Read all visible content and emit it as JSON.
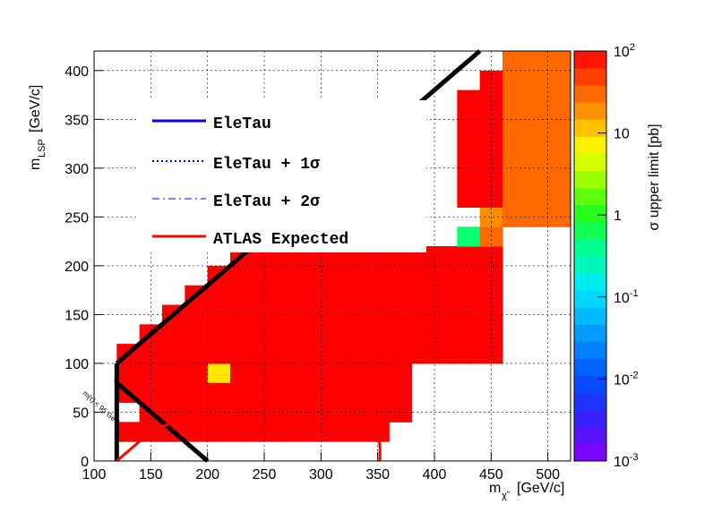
{
  "chart_data": {
    "type": "heatmap",
    "xlabel_main": "m",
    "xlabel_sub": "χ̃",
    "xlabel_unit": "[GeV/c]",
    "ylabel_main": "m",
    "ylabel_sub": "LSP",
    "ylabel_unit": "[GeV/c]",
    "zlabel": "σ upper limit [pb]",
    "xlim": [
      100,
      520
    ],
    "ylim": [
      0,
      420
    ],
    "zlim": [
      0.001,
      100
    ],
    "zscale": "log",
    "grid": true,
    "legend_placement": "top-left",
    "x_ticks": [
      100,
      150,
      200,
      250,
      300,
      350,
      400,
      450,
      500
    ],
    "y_ticks": [
      0,
      50,
      100,
      150,
      200,
      250,
      300,
      350,
      400
    ],
    "z_ticks": [
      {
        "label": "10",
        "exp": "-3",
        "value": 0.001
      },
      {
        "label": "10",
        "exp": "-2",
        "value": 0.01
      },
      {
        "label": "10",
        "exp": "-1",
        "value": 0.1
      },
      {
        "label": "1",
        "exp": "",
        "value": 1
      },
      {
        "label": "10",
        "exp": "",
        "value": 10
      },
      {
        "label": "10",
        "exp": "2",
        "value": 100
      }
    ],
    "cell_size": 20,
    "cells": [
      [
        120,
        80,
        100
      ],
      [
        140,
        80,
        100
      ],
      [
        160,
        80,
        100
      ],
      [
        180,
        80,
        100
      ],
      [
        200,
        80,
        8
      ],
      [
        220,
        80,
        100
      ],
      [
        240,
        80,
        100
      ],
      [
        260,
        80,
        100
      ],
      [
        280,
        80,
        100
      ],
      [
        300,
        80,
        100
      ],
      [
        320,
        80,
        100
      ],
      [
        340,
        80,
        100
      ],
      [
        360,
        80,
        100
      ],
      [
        120,
        100,
        100
      ],
      [
        140,
        100,
        100
      ],
      [
        160,
        100,
        100
      ],
      [
        180,
        100,
        100
      ],
      [
        200,
        100,
        100
      ],
      [
        220,
        100,
        100
      ],
      [
        240,
        100,
        100
      ],
      [
        260,
        100,
        100
      ],
      [
        280,
        100,
        100
      ],
      [
        300,
        100,
        100
      ],
      [
        320,
        100,
        100
      ],
      [
        340,
        100,
        100
      ],
      [
        360,
        100,
        100
      ],
      [
        380,
        100,
        100
      ],
      [
        400,
        100,
        100
      ],
      [
        420,
        100,
        100
      ],
      [
        440,
        100,
        100
      ],
      [
        140,
        120,
        100
      ],
      [
        160,
        120,
        100
      ],
      [
        180,
        120,
        100
      ],
      [
        200,
        120,
        100
      ],
      [
        220,
        120,
        100
      ],
      [
        240,
        120,
        100
      ],
      [
        260,
        120,
        100
      ],
      [
        280,
        120,
        100
      ],
      [
        300,
        120,
        100
      ],
      [
        320,
        120,
        100
      ],
      [
        340,
        120,
        100
      ],
      [
        360,
        120,
        100
      ],
      [
        380,
        120,
        100
      ],
      [
        400,
        120,
        100
      ],
      [
        420,
        120,
        100
      ],
      [
        440,
        120,
        100
      ],
      [
        160,
        140,
        100
      ],
      [
        180,
        140,
        100
      ],
      [
        200,
        140,
        100
      ],
      [
        220,
        140,
        100
      ],
      [
        240,
        140,
        100
      ],
      [
        260,
        140,
        100
      ],
      [
        280,
        140,
        100
      ],
      [
        300,
        140,
        100
      ],
      [
        320,
        140,
        100
      ],
      [
        340,
        140,
        100
      ],
      [
        360,
        140,
        100
      ],
      [
        380,
        140,
        100
      ],
      [
        400,
        140,
        100
      ],
      [
        420,
        140,
        100
      ],
      [
        440,
        140,
        100
      ],
      [
        180,
        160,
        100
      ],
      [
        200,
        160,
        100
      ],
      [
        220,
        160,
        100
      ],
      [
        240,
        160,
        100
      ],
      [
        260,
        160,
        100
      ],
      [
        280,
        160,
        100
      ],
      [
        300,
        160,
        100
      ],
      [
        320,
        160,
        100
      ],
      [
        340,
        160,
        100
      ],
      [
        360,
        160,
        100
      ],
      [
        380,
        160,
        100
      ],
      [
        400,
        160,
        100
      ],
      [
        420,
        160,
        100
      ],
      [
        440,
        160,
        100
      ],
      [
        200,
        180,
        100
      ],
      [
        220,
        180,
        100
      ],
      [
        240,
        180,
        100
      ],
      [
        260,
        180,
        100
      ],
      [
        280,
        180,
        100
      ],
      [
        300,
        180,
        100
      ],
      [
        320,
        180,
        100
      ],
      [
        340,
        180,
        100
      ],
      [
        360,
        180,
        100
      ],
      [
        380,
        180,
        100
      ],
      [
        400,
        180,
        100
      ],
      [
        420,
        180,
        100
      ],
      [
        440,
        180,
        100
      ],
      [
        220,
        200,
        100
      ],
      [
        240,
        200,
        100
      ],
      [
        260,
        200,
        100
      ],
      [
        280,
        200,
        100
      ],
      [
        300,
        200,
        100
      ],
      [
        320,
        200,
        100
      ],
      [
        340,
        200,
        100
      ],
      [
        360,
        200,
        100
      ],
      [
        380,
        200,
        100
      ],
      [
        400,
        200,
        100
      ],
      [
        420,
        200,
        100
      ],
      [
        440,
        200,
        100
      ],
      [
        420,
        220,
        0.5
      ],
      [
        440,
        220,
        30
      ],
      [
        440,
        240,
        20
      ],
      [
        460,
        240,
        30
      ],
      [
        480,
        240,
        30
      ],
      [
        500,
        240,
        30
      ],
      [
        420,
        260,
        100
      ],
      [
        440,
        260,
        100
      ],
      [
        460,
        260,
        30
      ],
      [
        480,
        260,
        30
      ],
      [
        500,
        260,
        30
      ],
      [
        420,
        280,
        100
      ],
      [
        440,
        280,
        100
      ],
      [
        460,
        280,
        30
      ],
      [
        480,
        280,
        30
      ],
      [
        500,
        280,
        30
      ],
      [
        420,
        300,
        100
      ],
      [
        440,
        300,
        100
      ],
      [
        460,
        300,
        30
      ],
      [
        480,
        300,
        30
      ],
      [
        500,
        300,
        30
      ],
      [
        420,
        320,
        100
      ],
      [
        440,
        320,
        100
      ],
      [
        460,
        320,
        30
      ],
      [
        480,
        320,
        30
      ],
      [
        500,
        320,
        30
      ],
      [
        420,
        340,
        100
      ],
      [
        440,
        340,
        100
      ],
      [
        460,
        340,
        30
      ],
      [
        480,
        340,
        30
      ],
      [
        500,
        340,
        30
      ],
      [
        420,
        360,
        100
      ],
      [
        440,
        360,
        100
      ],
      [
        460,
        360,
        30
      ],
      [
        480,
        360,
        30
      ],
      [
        500,
        360,
        30
      ],
      [
        440,
        380,
        100
      ],
      [
        460,
        380,
        30
      ],
      [
        480,
        380,
        30
      ],
      [
        500,
        380,
        30
      ],
      [
        460,
        400,
        30
      ],
      [
        480,
        400,
        30
      ],
      [
        500,
        400,
        30
      ],
      [
        120,
        20,
        100
      ],
      [
        140,
        20,
        100
      ],
      [
        160,
        20,
        100
      ],
      [
        180,
        20,
        100
      ],
      [
        200,
        20,
        100
      ],
      [
        220,
        20,
        100
      ],
      [
        240,
        20,
        100
      ],
      [
        260,
        20,
        100
      ],
      [
        280,
        20,
        100
      ],
      [
        300,
        20,
        100
      ],
      [
        320,
        20,
        100
      ],
      [
        340,
        20,
        100
      ],
      [
        140,
        40,
        100
      ],
      [
        160,
        40,
        100
      ],
      [
        180,
        40,
        100
      ],
      [
        200,
        40,
        100
      ],
      [
        220,
        40,
        100
      ],
      [
        240,
        40,
        100
      ],
      [
        260,
        40,
        100
      ],
      [
        280,
        40,
        100
      ],
      [
        300,
        40,
        100
      ],
      [
        320,
        40,
        100
      ],
      [
        340,
        40,
        100
      ],
      [
        360,
        40,
        100
      ],
      [
        160,
        60,
        100
      ],
      [
        180,
        60,
        100
      ],
      [
        200,
        60,
        100
      ],
      [
        220,
        60,
        100
      ],
      [
        240,
        60,
        100
      ],
      [
        260,
        60,
        100
      ],
      [
        280,
        60,
        100
      ],
      [
        300,
        60,
        100
      ],
      [
        320,
        60,
        100
      ],
      [
        340,
        60,
        100
      ],
      [
        360,
        60,
        100
      ],
      [
        120,
        60,
        100
      ],
      [
        140,
        60,
        100
      ],
      [
        380,
        200,
        100
      ],
      [
        400,
        200,
        100
      ],
      [
        400,
        120,
        100
      ],
      [
        420,
        120,
        100
      ]
    ],
    "legend": [
      {
        "label": "EleTau",
        "color": "#0000ff",
        "dash": "solid"
      },
      {
        "label": "EleTau + 1σ",
        "color": "#0000ff",
        "dash": "dotted"
      },
      {
        "label": "EleTau + 2σ",
        "color": "#0000ff",
        "dash": "dashdot"
      },
      {
        "label": "ATLAS Expected",
        "color": "#ff0000",
        "dash": "solid"
      }
    ],
    "annotation": "m(τ̃) < 95 GeV",
    "kinematic_boundary": [
      [
        120,
        0
      ],
      [
        120,
        80
      ],
      [
        200,
        0
      ]
    ],
    "diagonal_boundary": [
      [
        120,
        100
      ],
      [
        440,
        420
      ]
    ],
    "atlas_expected_curve": [
      [
        120,
        0
      ],
      [
        150,
        30
      ],
      [
        200,
        55
      ],
      [
        250,
        68
      ],
      [
        270,
        70
      ],
      [
        300,
        68
      ],
      [
        330,
        60
      ],
      [
        345,
        48
      ],
      [
        350,
        30
      ],
      [
        352,
        15
      ],
      [
        352,
        0
      ]
    ]
  }
}
